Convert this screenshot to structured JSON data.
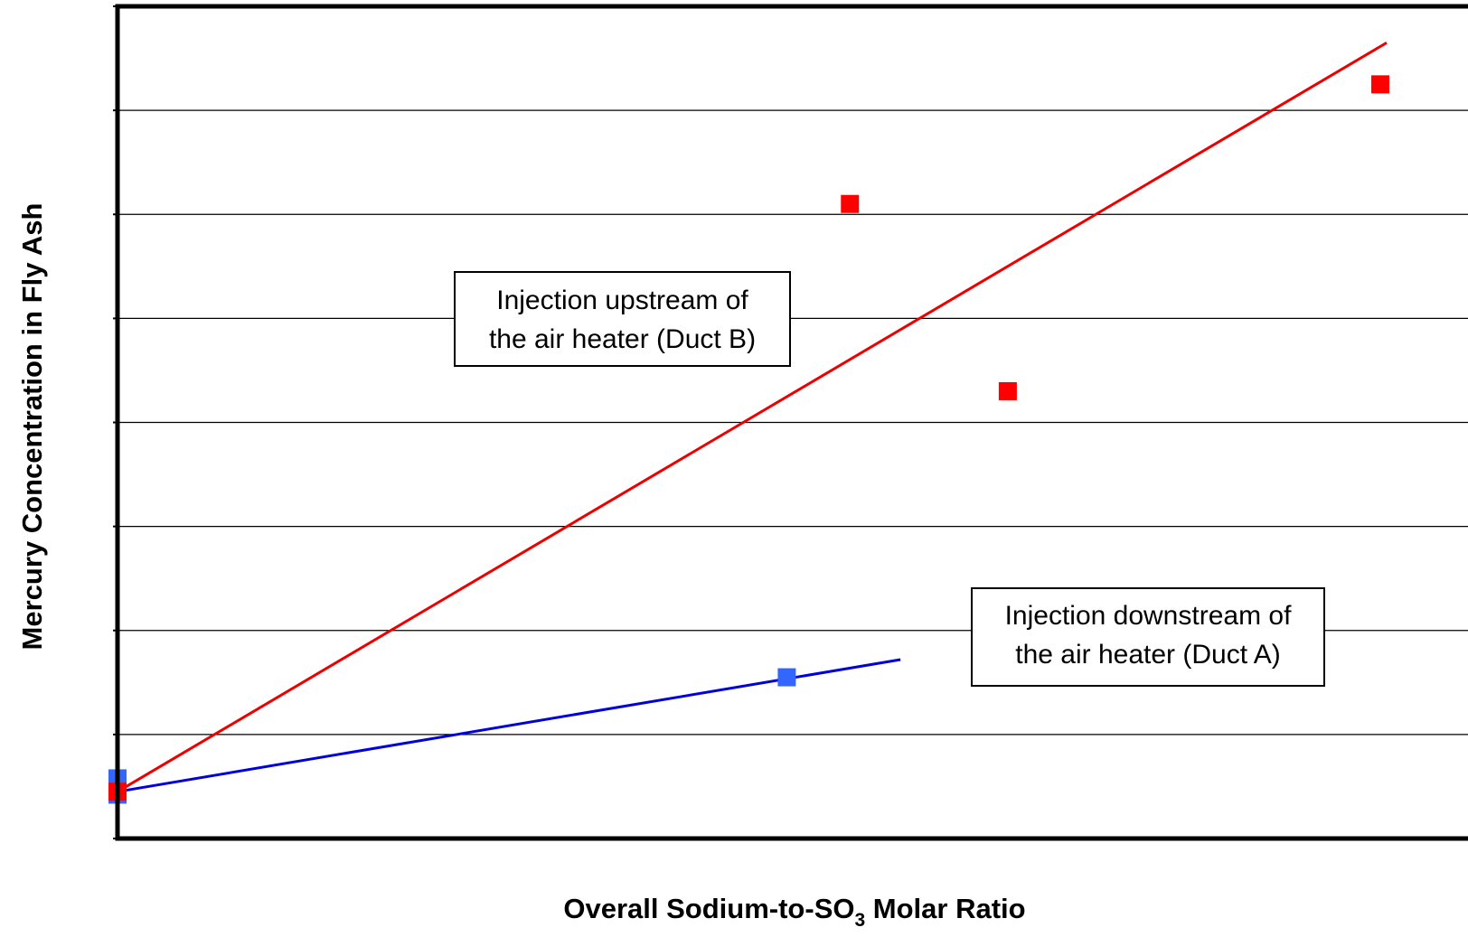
{
  "chart_data": {
    "type": "scatter",
    "title": "",
    "xlabel": {
      "main": "Overall Sodium-to-SO",
      "subscript": "3",
      "suffix": " Molar Ratio"
    },
    "ylabel": "Mercury Concentration in Fly Ash",
    "xlim": [
      0,
      100
    ],
    "ylim": [
      0,
      8
    ],
    "grid": true,
    "tick_labels_shown": false,
    "series": [
      {
        "name": "Injection downstream of the air heater (Duct A)",
        "color": "#3366ff",
        "marker": "square",
        "points": [
          {
            "x": 0,
            "y": 0.5
          },
          {
            "x": 53,
            "y": 1.55
          }
        ],
        "trendline": {
          "color": "#0000dd",
          "x": [
            0,
            62
          ],
          "y": [
            0.45,
            1.72
          ]
        }
      },
      {
        "name": "Injection upstream of the air heater (Duct B)",
        "color": "#ff0000",
        "marker": "square",
        "points": [
          {
            "x": 0,
            "y": 0.45
          },
          {
            "x": 58,
            "y": 6.1
          },
          {
            "x": 70.5,
            "y": 4.3
          },
          {
            "x": 100,
            "y": 7.25
          }
        ],
        "trendline": {
          "color": "#ee0000",
          "x": [
            0,
            100.5
          ],
          "y": [
            0.45,
            7.65
          ]
        }
      }
    ],
    "annotations": [
      {
        "id": "duct-b-label",
        "lines": [
          "Injection upstream of",
          "the air heater (Duct B)"
        ]
      },
      {
        "id": "duct-a-label",
        "lines": [
          "Injection downstream of",
          "the air heater (Duct A)"
        ]
      }
    ]
  }
}
